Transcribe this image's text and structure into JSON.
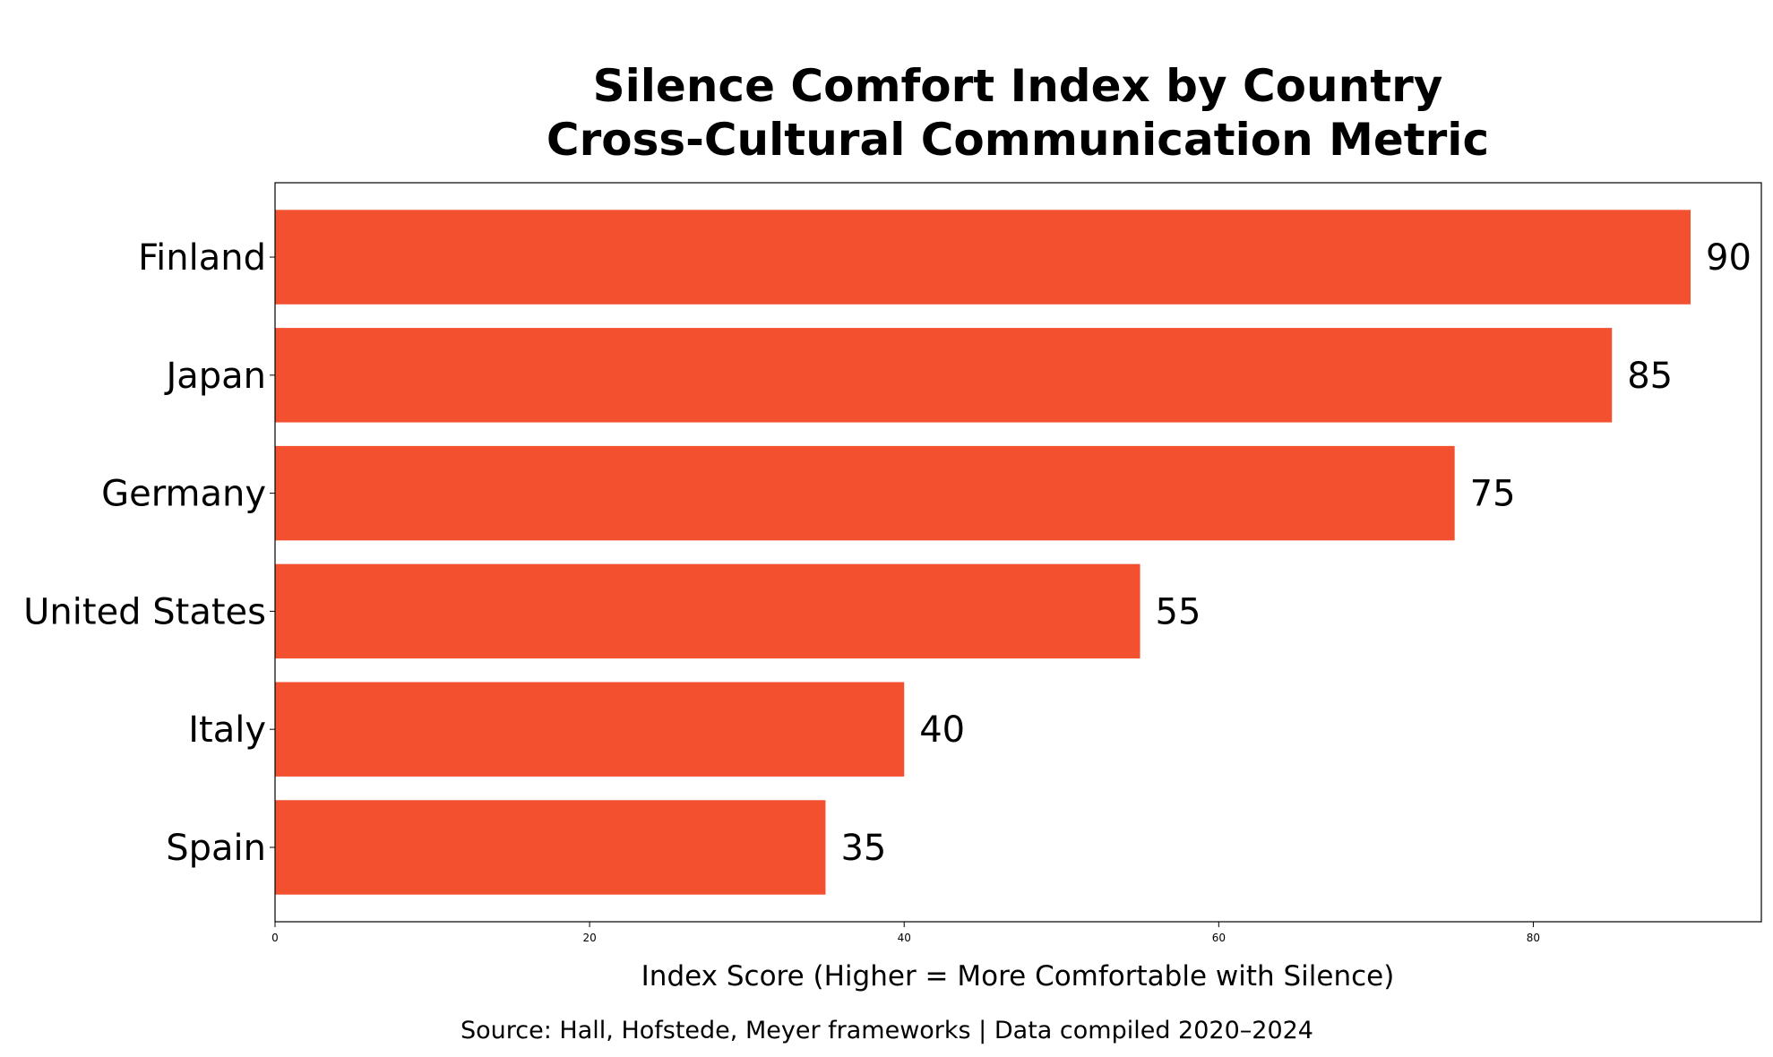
{
  "chart_data": {
    "type": "bar",
    "orientation": "horizontal",
    "title_lines": [
      "Silence Comfort Index by Country",
      "Cross-Cultural Communication Metric"
    ],
    "categories": [
      "Finland",
      "Japan",
      "Germany",
      "United States",
      "Italy",
      "Spain"
    ],
    "values": [
      90,
      85,
      75,
      55,
      40,
      35
    ],
    "value_labels": [
      "90",
      "85",
      "75",
      "55",
      "40",
      "35"
    ],
    "xlabel": "Index Score (Higher = More Comfortable with Silence)",
    "ylabel": "",
    "xlim": [
      0,
      94.5
    ],
    "xticks": [
      0,
      20,
      40,
      60,
      80
    ],
    "xtick_labels": [
      "0",
      "20",
      "40",
      "60",
      "80"
    ],
    "grid": false,
    "bar_color": "#F35030",
    "source": "Source: Hall, Hofstede, Meyer frameworks | Data compiled 2020–2024"
  }
}
